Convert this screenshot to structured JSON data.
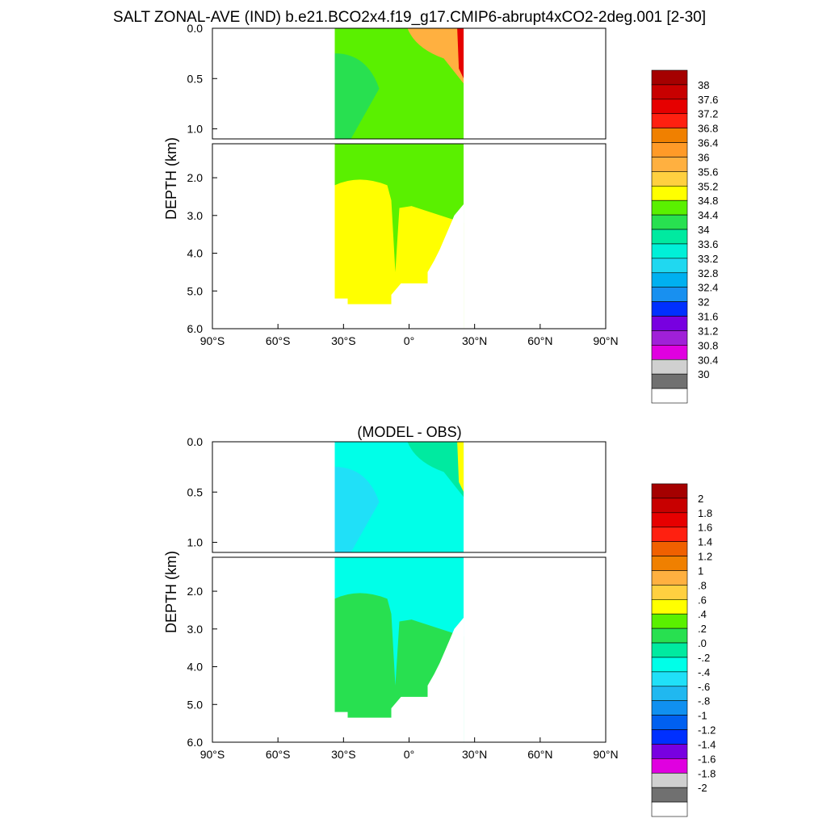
{
  "title": "SALT ZONAL-AVE (IND) b.e21.BCO2x4.f19_g17.CMIP6-abrupt4xCO2-2deg.001 [2-30]",
  "chart_data": [
    {
      "type": "heatmap",
      "title": "",
      "ylabel": "DEPTH (km)",
      "xlabel": "",
      "x_ticks": [
        {
          "value": -90,
          "label": "90°S"
        },
        {
          "value": -60,
          "label": "60°S"
        },
        {
          "value": -30,
          "label": "30°S"
        },
        {
          "value": 0,
          "label": "0°"
        },
        {
          "value": 30,
          "label": "30°N"
        },
        {
          "value": 60,
          "label": "60°N"
        },
        {
          "value": 90,
          "label": "90°N"
        }
      ],
      "xlim": [
        -90,
        90
      ],
      "y_ticks_upper": [
        "0.0",
        "0.5",
        "1.0"
      ],
      "y_ticks_lower": [
        "2.0",
        "3.0",
        "4.0",
        "5.0",
        "6.0"
      ],
      "ylim_upper_km": [
        0,
        1.1
      ],
      "ylim_lower_km": [
        1.1,
        6.0
      ],
      "ocean_lat_range": [
        -34,
        25
      ],
      "colorbar_labels": [
        "38",
        "37.6",
        "37.2",
        "36.8",
        "36.4",
        "36",
        "35.6",
        "35.2",
        "34.8",
        "34.4",
        "34",
        "33.6",
        "33.2",
        "32.8",
        "32.4",
        "32",
        "31.6",
        "31.2",
        "30.8",
        "30.4",
        "30"
      ],
      "colors": [
        "#a50000",
        "#c80000",
        "#e60000",
        "#ff2010",
        "#f08000",
        "#ff9a28",
        "#ffb040",
        "#ffd040",
        "#ffff00",
        "#5af000",
        "#28e050",
        "#00eaa0",
        "#00f0d8",
        "#20d8f0",
        "#00b0f0",
        "#1890f0",
        "#0030ff",
        "#7800e0",
        "#a020d8",
        "#e000e0",
        "#d0d0d0",
        "#707070",
        "#ffffff"
      ],
      "regions": [
        {
          "name": "salinity 34.4-34.8 (upper ocean)",
          "color_index": 9
        },
        {
          "name": "salinity 34.0-34.4 (southern upper ocean)",
          "color_index": 10
        },
        {
          "name": "salinity 34.8-35.2 (deep ocean)",
          "color_index": 8
        },
        {
          "name": "salinity 35.2-36.4 (northern surface)",
          "color_index": 6
        },
        {
          "name": "salinity above 36.8 (Red Sea outflow)",
          "color_index": 2
        }
      ]
    },
    {
      "type": "heatmap",
      "title": "(MODEL - OBS)",
      "ylabel": "DEPTH (km)",
      "xlabel": "",
      "x_ticks": [
        {
          "value": -90,
          "label": "90°S"
        },
        {
          "value": -60,
          "label": "60°S"
        },
        {
          "value": -30,
          "label": "30°S"
        },
        {
          "value": 0,
          "label": "0°"
        },
        {
          "value": 30,
          "label": "30°N"
        },
        {
          "value": 60,
          "label": "60°N"
        },
        {
          "value": 90,
          "label": "90°N"
        }
      ],
      "xlim": [
        -90,
        90
      ],
      "y_ticks_upper": [
        "0.0",
        "0.5",
        "1.0"
      ],
      "y_ticks_lower": [
        "2.0",
        "3.0",
        "4.0",
        "5.0",
        "6.0"
      ],
      "ylim_upper_km": [
        0,
        1.1
      ],
      "ylim_lower_km": [
        1.1,
        6.0
      ],
      "ocean_lat_range": [
        -34,
        25
      ],
      "colorbar_labels": [
        "2",
        "1.8",
        "1.6",
        "1.4",
        "1.2",
        "1",
        ".8",
        ".6",
        ".4",
        ".2",
        ".0",
        "-.2",
        "-.4",
        "-.6",
        "-.8",
        "-1",
        "-1.2",
        "-1.4",
        "-1.6",
        "-1.8",
        "-2"
      ],
      "colors": [
        "#a50000",
        "#c80000",
        "#e60000",
        "#ff2010",
        "#f06000",
        "#f08000",
        "#ffb040",
        "#ffd040",
        "#ffff00",
        "#5af000",
        "#28e050",
        "#00eaa0",
        "#00ffe8",
        "#20e0f8",
        "#20b8f0",
        "#1090f0",
        "#0060f0",
        "#0030ff",
        "#7800e0",
        "#e000e0",
        "#d0d0d0",
        "#707070",
        "#ffffff"
      ],
      "regions": [
        {
          "name": "difference -0.4 to -0.2 (upper ocean)",
          "color_index": 12
        },
        {
          "name": "difference -0.6 to -0.4 (southern upper ocean)",
          "color_index": 13
        },
        {
          "name": "difference 0.0 to 0.2 (deep ocean)",
          "color_index": 10
        },
        {
          "name": "difference -0.2 to 0.0 (intermediate)",
          "color_index": 11
        },
        {
          "name": "difference above 0.4 (northern surface)",
          "color_index": 8
        }
      ]
    }
  ]
}
